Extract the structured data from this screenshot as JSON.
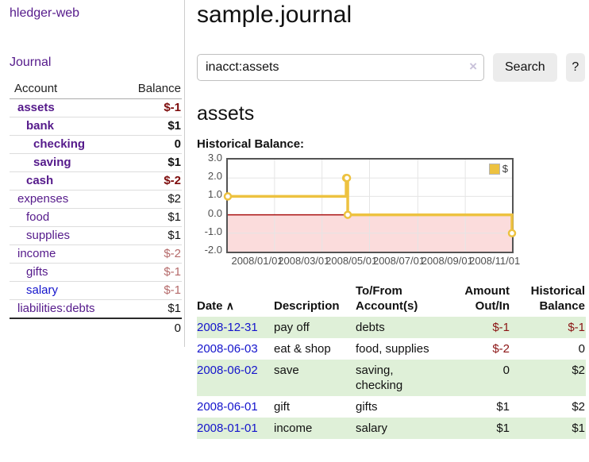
{
  "colors": {
    "link-purple": "#551a8b",
    "link-blue": "#1414cc",
    "neg-strong": "#7d0b0b",
    "neg-soft": "#b56a6a",
    "neg-reg": "#8b1414",
    "row-green": "#dff0d8",
    "chart-gold": "#edc240",
    "chart-pink": "#fbdcdc",
    "chart-zero": "#aa1111"
  },
  "sidebar": {
    "app_title": "hledger-web",
    "nav_journal": "Journal",
    "accounts": {
      "col_account": "Account",
      "col_balance": "Balance",
      "rows": [
        {
          "name": "assets",
          "balance": "$-1",
          "depth": 1,
          "bold": true,
          "balance_style": "neg-strong"
        },
        {
          "name": "bank",
          "balance": "$1",
          "depth": 2,
          "bold": true,
          "balance_style": ""
        },
        {
          "name": "checking",
          "balance": "0",
          "depth": 3,
          "bold": true,
          "balance_style": ""
        },
        {
          "name": "saving",
          "balance": "$1",
          "depth": 3,
          "bold": true,
          "balance_style": ""
        },
        {
          "name": "cash",
          "balance": "$-2",
          "depth": 2,
          "bold": true,
          "balance_style": "neg-strong"
        },
        {
          "name": "expenses",
          "balance": "$2",
          "depth": 1,
          "bold": false,
          "balance_style": ""
        },
        {
          "name": "food",
          "balance": "$1",
          "depth": 2,
          "bold": false,
          "balance_style": ""
        },
        {
          "name": "supplies",
          "balance": "$1",
          "depth": 2,
          "bold": false,
          "balance_style": ""
        },
        {
          "name": "income",
          "balance": "$-2",
          "depth": 1,
          "bold": false,
          "balance_style": "neg-soft"
        },
        {
          "name": "gifts",
          "balance": "$-1",
          "depth": 2,
          "bold": false,
          "balance_style": "neg-soft"
        },
        {
          "name": "salary",
          "balance": "$-1",
          "depth": 2,
          "bold": false,
          "balance_style": "neg-soft",
          "link_blue": true
        },
        {
          "name": "liabilities:debts",
          "balance": "$1",
          "depth": 1,
          "bold": false,
          "balance_style": ""
        }
      ],
      "total": "0"
    }
  },
  "main": {
    "title": "sample.journal",
    "search": {
      "value": "inacct:assets",
      "clear_icon": "×",
      "search_button": "Search",
      "help_button": "?"
    },
    "account_heading": "assets",
    "section_label": "Historical Balance:"
  },
  "chart_data": {
    "type": "line",
    "step": true,
    "title": "Historical Balance",
    "series": [
      {
        "name": "$",
        "color": "#edc240",
        "points": [
          {
            "date": "2008-01-01",
            "day": 0,
            "value": 1
          },
          {
            "date": "2008-06-01",
            "day": 152,
            "value": 2
          },
          {
            "date": "2008-06-02",
            "day": 153,
            "value": 2
          },
          {
            "date": "2008-06-03",
            "day": 154,
            "value": 0
          },
          {
            "date": "2008-12-31",
            "day": 365,
            "value": -1
          }
        ]
      }
    ],
    "x_ticks": [
      {
        "label": "2008/01/01",
        "day": 0
      },
      {
        "label": "2008/03/01",
        "day": 60
      },
      {
        "label": "2008/05/01",
        "day": 121
      },
      {
        "label": "2008/07/01",
        "day": 182
      },
      {
        "label": "2008/09/01",
        "day": 244
      },
      {
        "label": "2008/11/01",
        "day": 305
      }
    ],
    "y_ticks": [
      3.0,
      2.0,
      1.0,
      0.0,
      -1.0,
      -2.0
    ],
    "xlim_days": [
      0,
      365
    ],
    "ylim": [
      -2,
      3
    ],
    "grid": true,
    "legend_position": "top-right",
    "negative_region_color": "#fbdcdc",
    "zero_line_color": "#aa1111",
    "grid_color": "#e5e5e5"
  },
  "register": {
    "headers": {
      "date": "Date",
      "sort_indicator": "∧",
      "description": "Description",
      "accounts": "To/From Account(s)",
      "amount": "Amount Out/In",
      "balance": "Historical Balance"
    },
    "rows": [
      {
        "date": "2008-12-31",
        "description": "pay off",
        "accounts": "debts",
        "amount": "$-1",
        "balance": "$-1",
        "amount_negative": true,
        "balance_negative": true
      },
      {
        "date": "2008-06-03",
        "description": "eat & shop",
        "accounts": "food, supplies",
        "amount": "$-2",
        "balance": "0",
        "amount_negative": true,
        "balance_negative": false
      },
      {
        "date": "2008-06-02",
        "description": "save",
        "accounts": "saving, checking",
        "amount": "0",
        "balance": "$2",
        "amount_negative": false,
        "balance_negative": false
      },
      {
        "date": "2008-06-01",
        "description": "gift",
        "accounts": "gifts",
        "amount": "$1",
        "balance": "$2",
        "amount_negative": false,
        "balance_negative": false
      },
      {
        "date": "2008-01-01",
        "description": "income",
        "accounts": "salary",
        "amount": "$1",
        "balance": "$1",
        "amount_negative": false,
        "balance_negative": false
      }
    ]
  }
}
